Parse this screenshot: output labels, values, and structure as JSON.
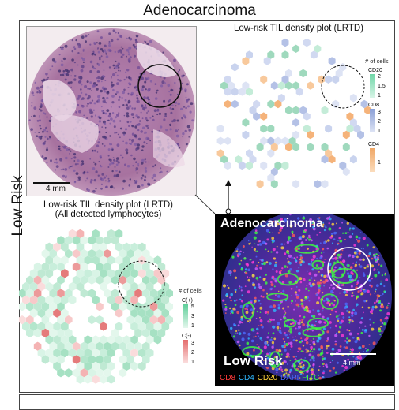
{
  "title": "Adenocarcinoma",
  "side_label": "Low Risk",
  "he_panel": {
    "scale_label": "4 mm"
  },
  "lrtd_top": {
    "title": "Low-risk TIL density plot (LRTD)",
    "legend_title": "# of cells",
    "groups": [
      {
        "name": "CD20",
        "ticks": [
          "2",
          "1.5",
          "1"
        ],
        "color_high": "#6fd6a7",
        "color_low": "#d8f4e7"
      },
      {
        "name": "CD8",
        "ticks": [
          "3",
          "2",
          "1"
        ],
        "color_high": "#8a9fd6",
        "color_low": "#dfe5f5"
      },
      {
        "name": "CD4",
        "ticks": [
          "1"
        ],
        "color_high": "#f0a766",
        "color_low": "#fbdcbc"
      }
    ]
  },
  "lrtd_bottom": {
    "title_line1": "Low-risk TIL density plot (LRTD)",
    "title_line2": "(All detected lymphocytes)",
    "legend_title": "# of cells",
    "groups": [
      {
        "name": "C(+)",
        "ticks": [
          "5",
          "3",
          "1"
        ],
        "color_high": "#5fcf9a",
        "color_low": "#e3f6ec"
      },
      {
        "name": "C(-)",
        "ticks": [
          "3",
          "2",
          "1"
        ],
        "color_high": "#e46b6b",
        "color_low": "#fbe0e0"
      }
    ]
  },
  "if_panel": {
    "title": "Adenocarcinoma",
    "risk_label": "Low Risk",
    "scale_label": "4 mm",
    "channels": [
      {
        "label": "CD8",
        "color": "#ff3b3b"
      },
      {
        "label": "CD4",
        "color": "#2fb8ff"
      },
      {
        "label": "CD20",
        "color": "#ffd23b"
      },
      {
        "label": "DAPI",
        "color": "#4d6bff"
      },
      {
        "label": "FITC",
        "color": "#3dff3d"
      }
    ]
  }
}
